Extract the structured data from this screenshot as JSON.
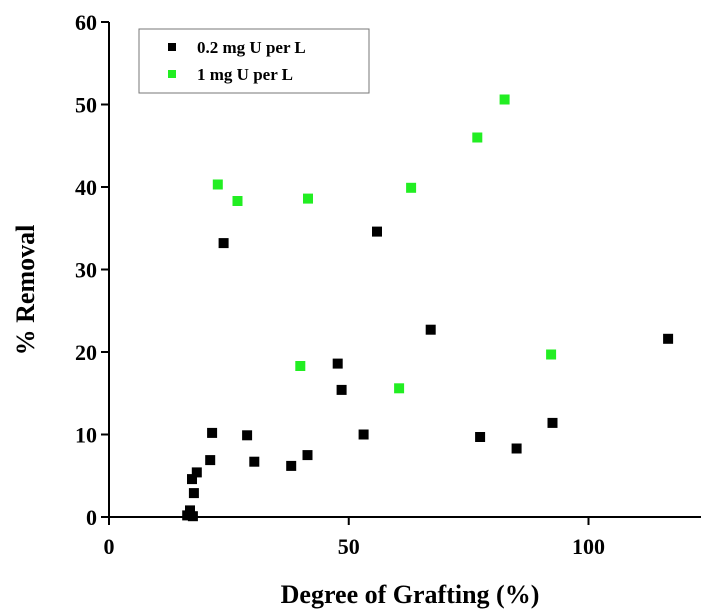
{
  "chart_data": {
    "type": "scatter",
    "title": "",
    "xlabel": "Degree of Grafting (%)",
    "ylabel": "% Removal",
    "xlim": [
      0,
      122
    ],
    "ylim": [
      0,
      60
    ],
    "xticks": [
      "0",
      "50",
      "100"
    ],
    "xtick_values": [
      0,
      50,
      100
    ],
    "yticks": [
      "0",
      "10",
      "20",
      "30",
      "40",
      "50",
      "60"
    ],
    "ytick_values": [
      0,
      10,
      20,
      30,
      40,
      50,
      60
    ],
    "grid": false,
    "legend_position": "top-left",
    "series": [
      {
        "name": "0.2 mg U per L",
        "color": "#000000",
        "points": [
          [
            16.3,
            0.2
          ],
          [
            16.9,
            0.8
          ],
          [
            17.5,
            0.1
          ],
          [
            17.3,
            4.6
          ],
          [
            17.7,
            2.9
          ],
          [
            18.3,
            5.4
          ],
          [
            21.1,
            6.9
          ],
          [
            21.5,
            10.2
          ],
          [
            23.9,
            33.2
          ],
          [
            28.8,
            9.9
          ],
          [
            30.3,
            6.7
          ],
          [
            38.0,
            6.2
          ],
          [
            41.4,
            7.5
          ],
          [
            47.7,
            18.6
          ],
          [
            48.5,
            15.4
          ],
          [
            53.1,
            10.0
          ],
          [
            55.9,
            34.6
          ],
          [
            67.1,
            22.7
          ],
          [
            77.4,
            9.7
          ],
          [
            85.0,
            8.3
          ],
          [
            92.5,
            11.4
          ],
          [
            116.6,
            21.6
          ]
        ]
      },
      {
        "name": "1 mg U per L",
        "color": "#22ee22",
        "points": [
          [
            22.7,
            40.3
          ],
          [
            26.8,
            38.3
          ],
          [
            39.9,
            18.3
          ],
          [
            41.5,
            38.6
          ],
          [
            60.5,
            15.6
          ],
          [
            63.0,
            39.9
          ],
          [
            76.8,
            46.0
          ],
          [
            82.5,
            50.6
          ],
          [
            92.2,
            19.7
          ]
        ]
      }
    ]
  }
}
